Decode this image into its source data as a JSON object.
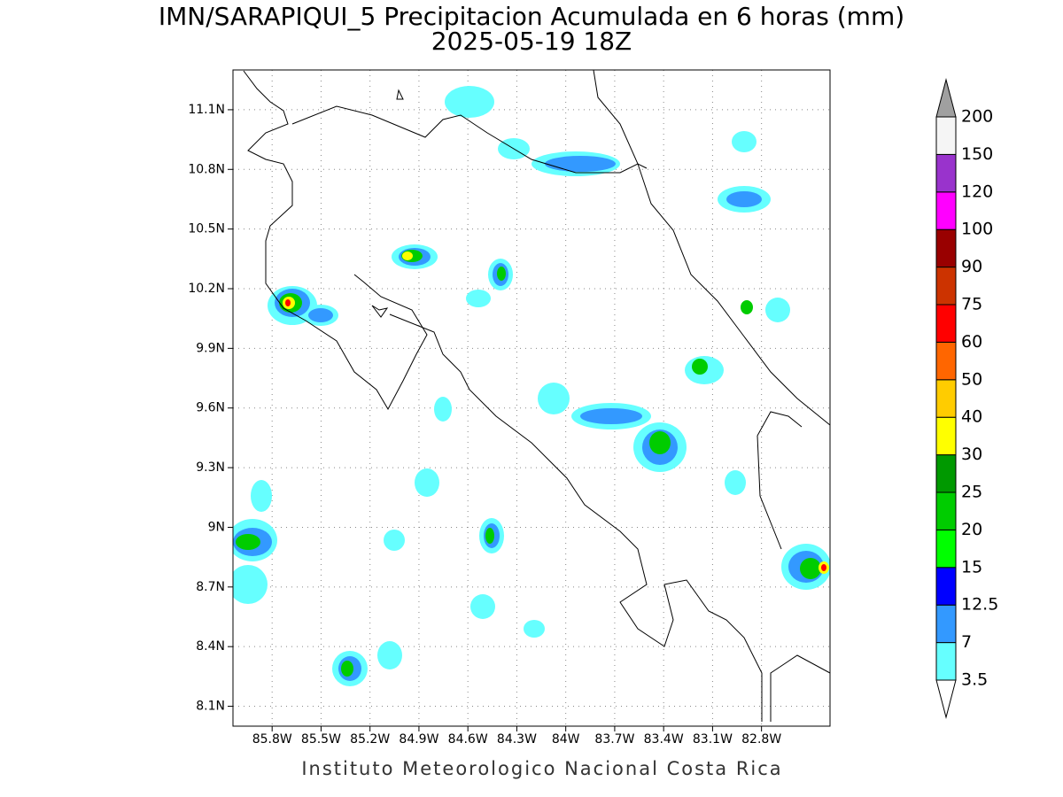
{
  "map": {
    "title": "IMN/SARAPIQUI_5 Precipitacion Acumulada en 6 horas (mm)",
    "subtitle": "2025-05-19 18Z",
    "xlim": [
      -86.04,
      -82.38
    ],
    "ylim": [
      8.0,
      11.3
    ],
    "xticks": [
      {
        "value": -85.8,
        "label": "85.8W"
      },
      {
        "value": -85.5,
        "label": "85.5W"
      },
      {
        "value": -85.2,
        "label": "85.2W"
      },
      {
        "value": -84.9,
        "label": "84.9W"
      },
      {
        "value": -84.6,
        "label": "84.6W"
      },
      {
        "value": -84.3,
        "label": "84.3W"
      },
      {
        "value": -84.0,
        "label": "84W"
      },
      {
        "value": -83.7,
        "label": "83.7W"
      },
      {
        "value": -83.4,
        "label": "83.4W"
      },
      {
        "value": -83.1,
        "label": "83.1W"
      },
      {
        "value": -82.8,
        "label": "82.8W"
      }
    ],
    "yticks": [
      {
        "value": 8.1,
        "label": "8.1N"
      },
      {
        "value": 8.4,
        "label": "8.4N"
      },
      {
        "value": 8.7,
        "label": "8.7N"
      },
      {
        "value": 9.0,
        "label": "9N"
      },
      {
        "value": 9.3,
        "label": "9.3N"
      },
      {
        "value": 9.6,
        "label": "9.6N"
      },
      {
        "value": 9.9,
        "label": "9.9N"
      },
      {
        "value": 10.2,
        "label": "10.2N"
      },
      {
        "value": 10.5,
        "label": "10.5N"
      },
      {
        "value": 10.8,
        "label": "10.8N"
      },
      {
        "value": 11.1,
        "label": "11.1N"
      }
    ],
    "grid": true
  },
  "colorbar": {
    "levels": [
      3.5,
      7,
      12.5,
      15,
      20,
      25,
      30,
      40,
      50,
      60,
      75,
      90,
      100,
      120,
      150,
      200
    ],
    "colors": [
      "#66ffff",
      "#3399ff",
      "#0000ff",
      "#00ff00",
      "#00cc00",
      "#009900",
      "#ffff00",
      "#ffcc00",
      "#ff6600",
      "#ff0000",
      "#cc3300",
      "#990000",
      "#ff00ff",
      "#9933cc",
      "#f5f5f5"
    ],
    "under_color": "#ffffff",
    "over_color": "#a0a0a0"
  },
  "footer": "Instituto Meteorologico Nacional Costa Rica"
}
